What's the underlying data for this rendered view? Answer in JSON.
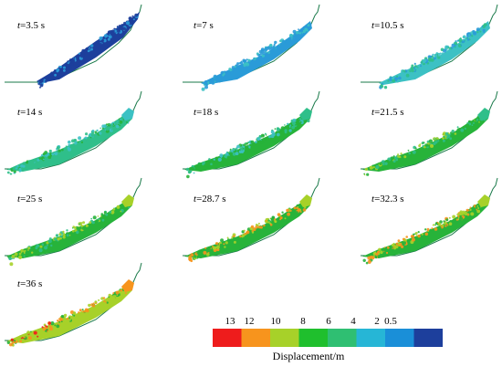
{
  "panels": [
    {
      "label": "t=3.5 s",
      "stage": 0
    },
    {
      "label": "t=7 s",
      "stage": 1
    },
    {
      "label": "t=10.5 s",
      "stage": 2
    },
    {
      "label": "t=14 s",
      "stage": 3
    },
    {
      "label": "t=18 s",
      "stage": 4
    },
    {
      "label": "t=21.5 s",
      "stage": 5
    },
    {
      "label": "t=25 s",
      "stage": 6
    },
    {
      "label": "t=28.7 s",
      "stage": 7
    },
    {
      "label": "t=32.3 s",
      "stage": 8
    },
    {
      "label": "t=36 s",
      "stage": 9
    }
  ],
  "legend": {
    "title": "Displacement/m",
    "ticks": [
      "13",
      "12",
      "10",
      "8",
      "6",
      "4",
      "2",
      "0.5"
    ],
    "colors": [
      "#ee1c1c",
      "#f7941d",
      "#a7d129",
      "#1fbf2d",
      "#2fbf72",
      "#26b6d6",
      "#1a8fd8",
      "#1d3f9c"
    ]
  },
  "colors": {
    "deep_blue": "#1d3f9c",
    "light_blue": "#2a9bd8",
    "cyan": "#3cc1c4",
    "teal": "#2fbf8a",
    "green": "#27b33a",
    "yellow_green": "#a7d129",
    "orange": "#f7941d",
    "red": "#ee1c1c",
    "slope_line": "#1a7a4a"
  }
}
